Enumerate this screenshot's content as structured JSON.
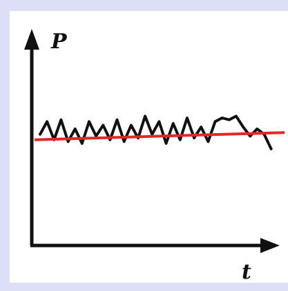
{
  "chart_data": {
    "type": "line",
    "title": "",
    "xlabel": "t",
    "ylabel": "P",
    "ticks": "none",
    "grid": false,
    "x_range": [
      0,
      1
    ],
    "y_range": [
      0,
      1
    ],
    "series": [
      {
        "kind": "fluctuating signal",
        "color": "#111111",
        "x": [
          0.0,
          0.03,
          0.06,
          0.09,
          0.12,
          0.15,
          0.18,
          0.21,
          0.24,
          0.27,
          0.3,
          0.33,
          0.36,
          0.39,
          0.42,
          0.45,
          0.48,
          0.51,
          0.54,
          0.57,
          0.6,
          0.63,
          0.66,
          0.69,
          0.72,
          0.75,
          0.78,
          0.81,
          0.84,
          0.87,
          0.9,
          0.93,
          0.96,
          0.99
        ],
        "y": [
          0.55,
          0.62,
          0.52,
          0.63,
          0.51,
          0.58,
          0.5,
          0.62,
          0.54,
          0.6,
          0.52,
          0.63,
          0.51,
          0.6,
          0.53,
          0.65,
          0.55,
          0.62,
          0.5,
          0.61,
          0.52,
          0.64,
          0.53,
          0.59,
          0.51,
          0.62,
          0.64,
          0.63,
          0.65,
          0.59,
          0.54,
          0.58,
          0.55,
          0.47
        ]
      },
      {
        "kind": "mean level",
        "color": "#e32626",
        "x": [
          0,
          1
        ],
        "y": [
          0.52,
          0.56
        ]
      }
    ]
  }
}
